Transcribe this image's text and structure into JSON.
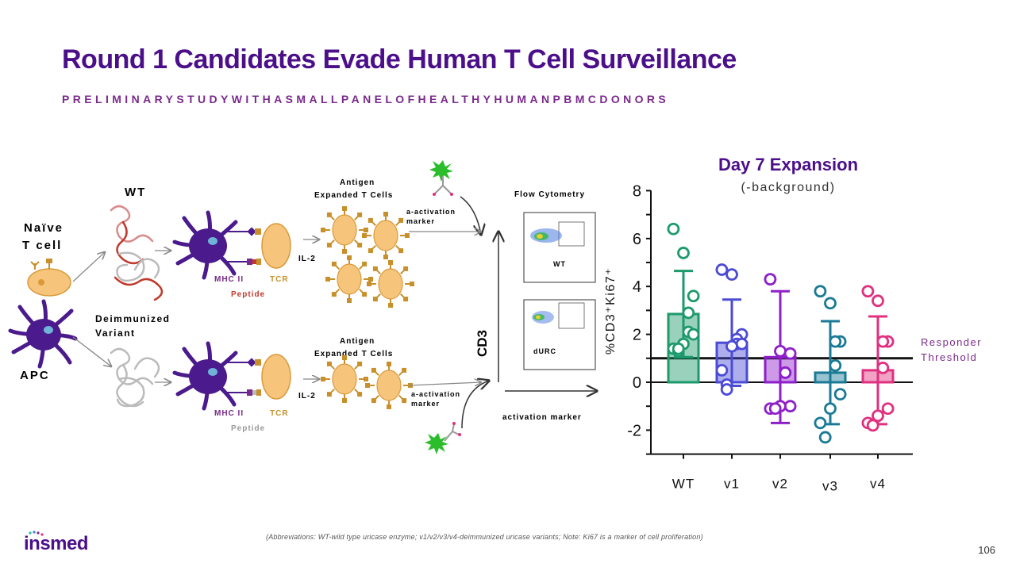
{
  "slide": {
    "title": "Round 1 Candidates Evade Human T Cell Surveillance",
    "subtitle": "PRELIMINARYSTUDYWITHASMALLPANELOFHEALTHYHUMANPBMCDONORS",
    "page_number": "106",
    "footnote": "(Abbreviations: WT-wild type uricase enzyme; v1/v2/v3/v4-deimmunized uricase variants; Note: Ki67 is a marker of cell proliferation)",
    "logo_text": "insmed"
  },
  "diagram": {
    "naive_t_cell": [
      "Naïve",
      "T cell"
    ],
    "apc": "APC",
    "wt": "WT",
    "deimmunized_variant": [
      "Deimmunized",
      "Variant"
    ],
    "mhc_ii": "MHC II",
    "tcr": "TCR",
    "peptide": "Peptide",
    "il2": "IL-2",
    "antigen_expanded": [
      "Antigen",
      "Expanded T Cells"
    ],
    "activation_marker_label": [
      "a-activation",
      "marker"
    ],
    "flow_cytometry": "Flow Cytometry",
    "cd3": "CD3",
    "activation_marker": "activation marker",
    "plot_top_label": "WT",
    "plot_bottom_label": "dURC",
    "colors": {
      "apc": "#4b1a8c",
      "tcell": "#f6c47b",
      "tcell_stroke": "#d99a3a",
      "wt_peptide": "#c0392b",
      "mhc": "#7b2a8c",
      "tcr": "#c8902a",
      "green": "#2bbd2b"
    }
  },
  "chart_data": {
    "type": "bar",
    "title": "Day 7 Expansion",
    "subtitle": "(-background)",
    "ylabel": "%CD3⁺Ki67⁺",
    "ylim": [
      -3,
      8
    ],
    "yticks": [
      "8",
      "6",
      "4",
      "2",
      "0",
      "-2"
    ],
    "threshold": 1,
    "threshold_label": [
      "Responder",
      "Threshold"
    ],
    "categories": [
      "WT",
      "v1",
      "v2",
      "v3",
      "v4"
    ],
    "values": [
      2.85,
      1.65,
      1.05,
      0.4,
      0.5
    ],
    "errors": [
      1.8,
      1.8,
      2.75,
      2.15,
      2.25
    ],
    "colors": [
      "#1d9a6c",
      "#4b4bd6",
      "#8e1fc9",
      "#1a7a96",
      "#e0307f"
    ],
    "points": [
      [
        6.4,
        5.4,
        3.6,
        2.9,
        2.1,
        2.0,
        1.6,
        1.4,
        1.3,
        1.4
      ],
      [
        4.7,
        4.5,
        2.0,
        1.8,
        1.6,
        1.6,
        1.5,
        0.5,
        -0.1,
        -0.3
      ],
      [
        4.3,
        1.3,
        1.2,
        0.4,
        0.4,
        -1.0,
        -1.0,
        -1.1,
        -1.1
      ],
      [
        3.8,
        3.3,
        1.7,
        1.7,
        0.7,
        -0.5,
        -1.1,
        -1.7,
        -2.3
      ],
      [
        3.8,
        3.4,
        1.7,
        1.7,
        0.6,
        -1.1,
        -1.4,
        -1.7,
        -1.8
      ]
    ]
  }
}
